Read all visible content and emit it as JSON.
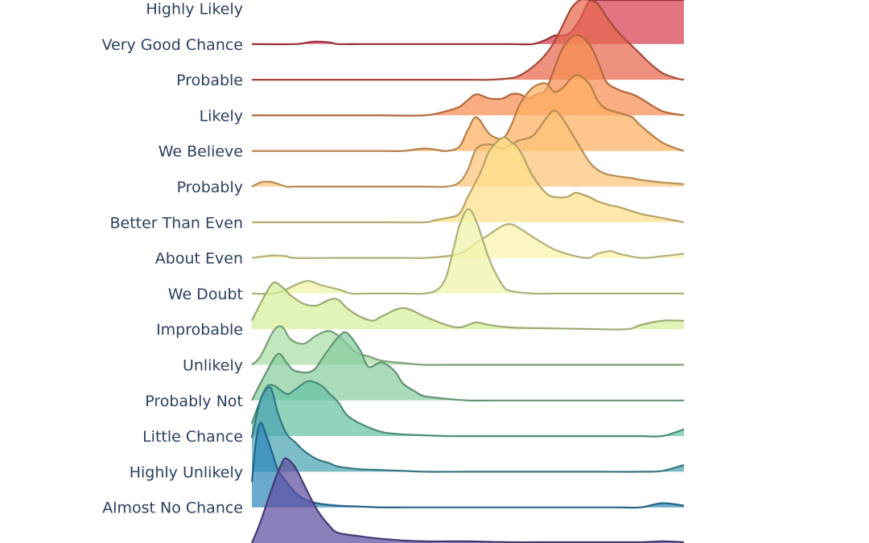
{
  "chart_data": {
    "type": "ridgeline",
    "title": "",
    "xlabel": "",
    "ylabel": "",
    "xlim": [
      0,
      100
    ],
    "grid": false,
    "legend": "none",
    "categories": [
      "Almost No Chance",
      "Highly Unlikely",
      "Little Chance",
      "Probably Not",
      "Unlikely",
      "Improbable",
      "We Doubt",
      "About Even",
      "Better Than Even",
      "Probably",
      "We Believe",
      "Likely",
      "Probable",
      "Very Good Chance",
      "Highly Likely"
    ],
    "series": [
      {
        "label": "Almost No Chance",
        "color": "#5e4fa2",
        "x": [
          0,
          2,
          5,
          7,
          8,
          10,
          12,
          15,
          18,
          20,
          25,
          28,
          30,
          35,
          40,
          45,
          50,
          60,
          70,
          80,
          90,
          95,
          100
        ],
        "density": [
          0.0,
          0.25,
          0.7,
          0.95,
          1.0,
          0.9,
          0.7,
          0.4,
          0.2,
          0.12,
          0.08,
          0.06,
          0.05,
          0.03,
          0.02,
          0.02,
          0.02,
          0.01,
          0.01,
          0.01,
          0.01,
          0.02,
          0.01
        ]
      },
      {
        "label": "Highly Unlikely",
        "color": "#3288bd",
        "x": [
          0,
          1,
          2,
          3,
          5,
          6,
          8,
          10,
          12,
          15,
          20,
          25,
          30,
          35,
          40,
          50,
          60,
          70,
          80,
          85,
          90,
          95,
          100
        ],
        "density": [
          0.3,
          0.8,
          1.0,
          0.9,
          0.6,
          0.45,
          0.3,
          0.18,
          0.1,
          0.05,
          0.02,
          0.01,
          0.0,
          0.0,
          0.0,
          0.0,
          0.0,
          0.0,
          0.0,
          0.0,
          0.0,
          0.05,
          0.02
        ]
      },
      {
        "label": "Little Chance",
        "color": "#4aa4b2",
        "x": [
          0,
          2,
          4,
          5,
          6,
          8,
          10,
          12,
          15,
          18,
          20,
          25,
          30,
          35,
          40,
          50,
          60,
          70,
          80,
          90,
          95,
          100
        ],
        "density": [
          0.4,
          0.85,
          1.0,
          0.9,
          0.7,
          0.45,
          0.35,
          0.25,
          0.15,
          0.1,
          0.06,
          0.03,
          0.02,
          0.01,
          0.0,
          0.0,
          0.0,
          0.0,
          0.0,
          0.0,
          0.01,
          0.08
        ]
      },
      {
        "label": "Probably Not",
        "color": "#66c2a5",
        "x": [
          0,
          3,
          5,
          8,
          10,
          13,
          16,
          18,
          20,
          22,
          25,
          30,
          35,
          40,
          45,
          50,
          55,
          60,
          70,
          80,
          90,
          95,
          100
        ],
        "density": [
          0.15,
          0.55,
          0.6,
          0.5,
          0.55,
          0.65,
          0.6,
          0.5,
          0.4,
          0.25,
          0.15,
          0.05,
          0.02,
          0.01,
          0.0,
          0.0,
          0.0,
          0.0,
          0.0,
          0.0,
          0.0,
          0.0,
          0.08
        ]
      },
      {
        "label": "Unlikely",
        "color": "#88cc9e",
        "x": [
          0,
          3,
          6,
          8,
          10,
          14,
          17,
          20,
          22,
          25,
          27,
          30,
          33,
          35,
          38,
          40,
          45,
          50,
          55,
          60,
          70,
          80,
          90,
          100
        ],
        "density": [
          0.0,
          0.3,
          0.55,
          0.45,
          0.35,
          0.35,
          0.55,
          0.75,
          0.8,
          0.6,
          0.4,
          0.45,
          0.35,
          0.2,
          0.1,
          0.05,
          0.02,
          0.0,
          0.0,
          0.0,
          0.0,
          0.0,
          0.0,
          0.0
        ]
      },
      {
        "label": "Improbable",
        "color": "#abdda4",
        "x": [
          0,
          2,
          5,
          7,
          9,
          12,
          15,
          18,
          21,
          24,
          27,
          30,
          35,
          40,
          45,
          50,
          60,
          70,
          80,
          90,
          100
        ],
        "density": [
          0.0,
          0.1,
          0.4,
          0.45,
          0.3,
          0.25,
          0.35,
          0.4,
          0.3,
          0.15,
          0.1,
          0.05,
          0.02,
          0.0,
          0.0,
          0.0,
          0.0,
          0.0,
          0.0,
          0.0,
          0.0
        ]
      },
      {
        "label": "We Doubt",
        "color": "#d6ee9b",
        "x": [
          0,
          3,
          5,
          7,
          9,
          12,
          15,
          18,
          20,
          22,
          25,
          28,
          30,
          35,
          40,
          45,
          48,
          50,
          52,
          55,
          60,
          70,
          80,
          87,
          90,
          95,
          100
        ],
        "density": [
          0.1,
          0.4,
          0.55,
          0.5,
          0.4,
          0.3,
          0.28,
          0.35,
          0.35,
          0.25,
          0.15,
          0.1,
          0.15,
          0.25,
          0.15,
          0.05,
          0.02,
          0.05,
          0.08,
          0.05,
          0.02,
          0.01,
          0.0,
          0.0,
          0.05,
          0.1,
          0.1
        ]
      },
      {
        "label": "About Even",
        "color": "#eef4a6",
        "x": [
          0,
          5,
          8,
          10,
          13,
          16,
          20,
          23,
          26,
          30,
          33,
          36,
          40,
          43,
          45,
          47,
          48,
          50,
          52,
          55,
          58,
          60,
          65,
          70,
          80,
          90,
          100
        ],
        "density": [
          0.0,
          0.0,
          0.05,
          0.1,
          0.15,
          0.1,
          0.05,
          0.0,
          0.0,
          0.0,
          0.0,
          0.0,
          0.0,
          0.05,
          0.2,
          0.6,
          0.8,
          1.0,
          0.85,
          0.4,
          0.1,
          0.03,
          0.0,
          0.0,
          0.0,
          0.0,
          0.0
        ]
      },
      {
        "label": "Better Than Even",
        "color": "#fbf2a8",
        "x": [
          0,
          3,
          5,
          8,
          10,
          20,
          30,
          35,
          40,
          45,
          48,
          50,
          52,
          55,
          58,
          60,
          62,
          65,
          70,
          75,
          78,
          80,
          83,
          85,
          90,
          95,
          100
        ],
        "density": [
          0.0,
          0.02,
          0.03,
          0.02,
          0.0,
          0.0,
          0.0,
          0.0,
          0.0,
          0.02,
          0.05,
          0.1,
          0.18,
          0.28,
          0.38,
          0.4,
          0.35,
          0.25,
          0.1,
          0.02,
          0.0,
          0.05,
          0.08,
          0.05,
          0.0,
          0.02,
          0.05
        ]
      },
      {
        "label": "Probably",
        "color": "#fee08b",
        "x": [
          0,
          10,
          20,
          30,
          40,
          42,
          45,
          48,
          50,
          53,
          55,
          58,
          60,
          62,
          65,
          68,
          70,
          73,
          75,
          78,
          80,
          83,
          85,
          90,
          95,
          100
        ],
        "density": [
          0.0,
          0.0,
          0.0,
          0.0,
          0.0,
          0.02,
          0.05,
          0.1,
          0.3,
          0.6,
          0.85,
          1.0,
          0.95,
          0.85,
          0.55,
          0.35,
          0.3,
          0.3,
          0.35,
          0.3,
          0.25,
          0.2,
          0.18,
          0.1,
          0.05,
          0.0
        ]
      },
      {
        "label": "We Believe",
        "color": "#fdc478",
        "x": [
          0,
          2,
          3,
          5,
          8,
          10,
          20,
          30,
          40,
          45,
          48,
          50,
          52,
          55,
          58,
          60,
          62,
          65,
          68,
          70,
          72,
          75,
          78,
          80,
          82,
          85,
          88,
          90,
          95,
          100
        ],
        "density": [
          0.0,
          0.05,
          0.06,
          0.05,
          0.0,
          0.0,
          0.0,
          0.0,
          0.0,
          0.0,
          0.05,
          0.2,
          0.45,
          0.5,
          0.45,
          0.5,
          0.55,
          0.6,
          0.8,
          0.9,
          0.8,
          0.55,
          0.3,
          0.2,
          0.15,
          0.12,
          0.1,
          0.08,
          0.05,
          0.03
        ]
      },
      {
        "label": "Likely",
        "color": "#fdae61",
        "x": [
          0,
          20,
          30,
          35,
          38,
          40,
          42,
          45,
          48,
          50,
          52,
          55,
          58,
          60,
          62,
          65,
          68,
          70,
          72,
          75,
          78,
          80,
          82,
          85,
          88,
          90,
          95,
          100
        ],
        "density": [
          0.0,
          0.0,
          0.0,
          0.0,
          0.02,
          0.03,
          0.02,
          0.0,
          0.05,
          0.25,
          0.4,
          0.2,
          0.15,
          0.3,
          0.55,
          0.75,
          0.8,
          0.7,
          0.75,
          0.9,
          0.8,
          0.6,
          0.5,
          0.45,
          0.4,
          0.3,
          0.1,
          0.0
        ]
      },
      {
        "label": "Probable",
        "color": "#f88d52",
        "x": [
          0,
          20,
          30,
          40,
          45,
          48,
          50,
          52,
          55,
          58,
          60,
          62,
          64,
          66,
          68,
          70,
          72,
          75,
          78,
          80,
          82,
          85,
          88,
          90,
          95,
          100
        ],
        "density": [
          0.0,
          0.0,
          0.0,
          0.0,
          0.05,
          0.1,
          0.18,
          0.25,
          0.2,
          0.2,
          0.25,
          0.25,
          0.2,
          0.25,
          0.3,
          0.55,
          0.8,
          0.95,
          0.85,
          0.65,
          0.4,
          0.3,
          0.25,
          0.2,
          0.05,
          0.0
        ]
      },
      {
        "label": "Very Good Chance",
        "color": "#e8664e",
        "x": [
          0,
          20,
          30,
          40,
          50,
          55,
          60,
          62,
          65,
          68,
          70,
          72,
          74,
          76,
          78,
          80,
          82,
          85,
          88,
          90,
          92,
          95,
          98,
          100
        ],
        "density": [
          0.0,
          0.0,
          0.0,
          0.0,
          0.0,
          0.0,
          0.02,
          0.05,
          0.15,
          0.3,
          0.45,
          0.65,
          0.85,
          0.95,
          1.0,
          0.9,
          0.75,
          0.55,
          0.4,
          0.3,
          0.2,
          0.08,
          0.02,
          0.0
        ]
      },
      {
        "label": "Highly Likely",
        "color": "#d53e4f",
        "x": [
          0,
          10,
          13,
          15,
          18,
          20,
          25,
          30,
          40,
          50,
          60,
          65,
          68,
          70,
          72,
          74,
          76,
          78,
          80,
          82,
          84,
          86,
          88,
          90,
          92,
          95,
          98,
          100
        ],
        "density": [
          0.0,
          0.0,
          0.02,
          0.03,
          0.02,
          0.0,
          0.0,
          0.0,
          0.0,
          0.0,
          0.0,
          0.0,
          0.05,
          0.1,
          0.1,
          0.15,
          0.3,
          0.5,
          0.65,
          0.7,
          0.65,
          0.6,
          0.55,
          0.55,
          0.6,
          0.65,
          0.7,
          0.7
        ]
      }
    ]
  }
}
